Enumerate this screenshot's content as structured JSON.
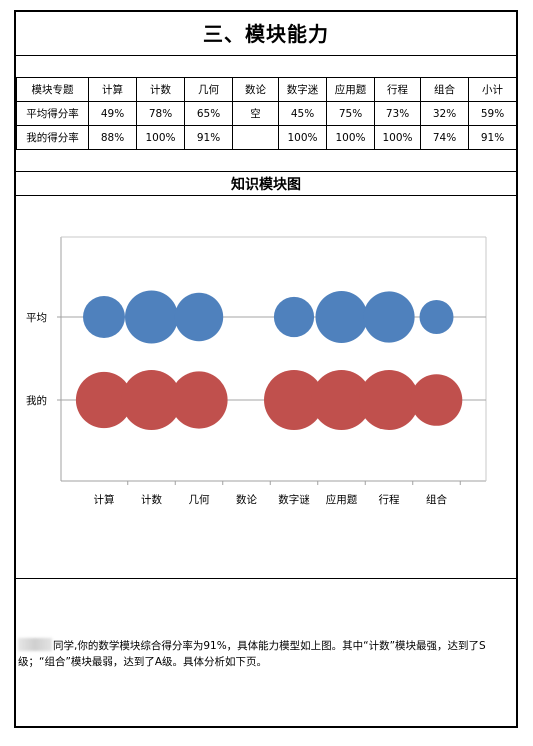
{
  "page": {
    "title": "三、模块能力"
  },
  "table": {
    "headers": [
      "模块专题",
      "计算",
      "计数",
      "几何",
      "数论",
      "数字迷",
      "应用题",
      "行程",
      "组合",
      "小计"
    ],
    "rows": [
      {
        "label": "平均得分率",
        "cells": [
          "49%",
          "78%",
          "65%",
          "空",
          "45%",
          "75%",
          "73%",
          "32%",
          "59%"
        ]
      },
      {
        "label": "我的得分率",
        "cells": [
          "88%",
          "100%",
          "91%",
          "",
          "100%",
          "100%",
          "100%",
          "74%",
          "91%"
        ]
      }
    ]
  },
  "chart_section": {
    "title": "知识模块图"
  },
  "chart_data": {
    "type": "scatter",
    "variant": "bubble",
    "categories": [
      "计算",
      "计数",
      "几何",
      "数论",
      "数字谜",
      "应用题",
      "行程",
      "组合"
    ],
    "y_categories": [
      "我的",
      "平均"
    ],
    "series": [
      {
        "name": "平均",
        "values": [
          49,
          78,
          65,
          null,
          45,
          75,
          73,
          32
        ],
        "color": "#4F81BD"
      },
      {
        "name": "我的",
        "values": [
          88,
          100,
          91,
          null,
          100,
          100,
          100,
          74
        ],
        "color": "#C0504D"
      }
    ],
    "grid": false,
    "legend": "none"
  },
  "summary": {
    "text": "同学,你的数学模块综合得分率为91%，具体能力模型如上图。其中“计数”模块最强，达到了S级；“组合”模块最弱，达到了A级。具体分析如下页。"
  }
}
